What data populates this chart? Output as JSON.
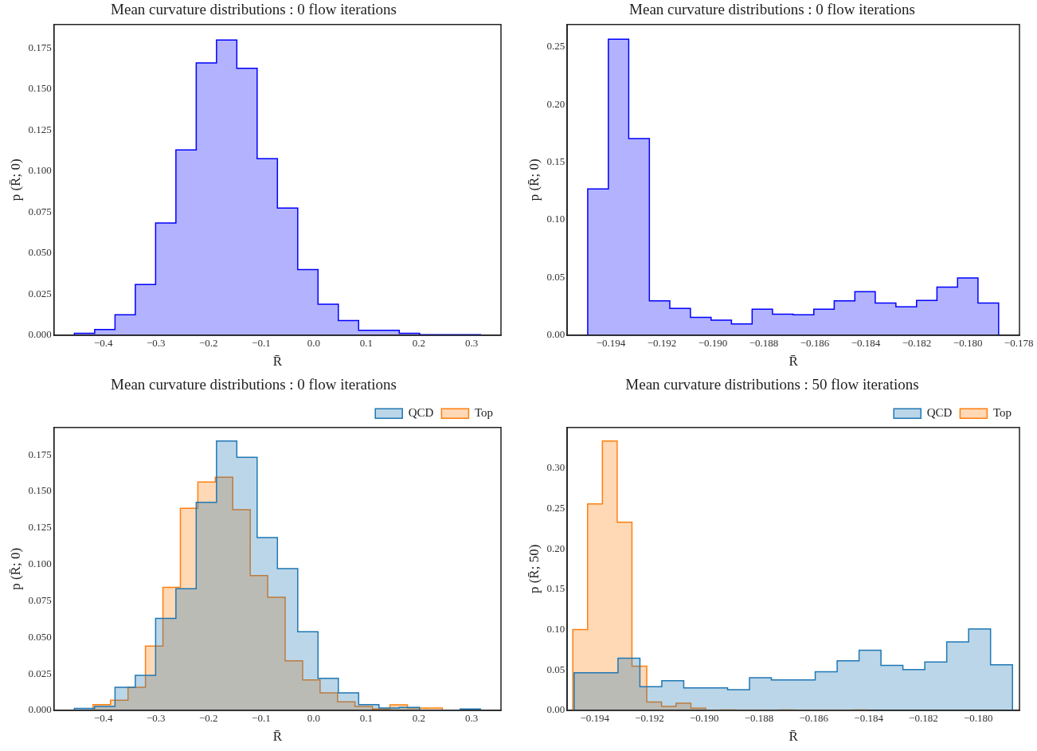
{
  "chart_data": [
    {
      "type": "histogram",
      "title": "Mean curvature distributions : 0 flow iterations",
      "xlabel": "R̄",
      "ylabel": "p (R̄; 0)",
      "color": "#0000ff",
      "bins": [
        -0.455,
        -0.4164,
        -0.3778,
        -0.3392,
        -0.3006,
        -0.262,
        -0.2234,
        -0.1848,
        -0.1462,
        -0.1076,
        -0.069,
        -0.0304,
        0.0082,
        0.0468,
        0.0854,
        0.124,
        0.1626,
        0.2012,
        0.2398,
        0.2784,
        0.317
      ],
      "values": [
        0.0012,
        0.0035,
        0.0125,
        0.031,
        0.0684,
        0.113,
        0.166,
        0.18,
        0.1627,
        0.1076,
        0.0776,
        0.04,
        0.0189,
        0.009,
        0.003,
        0.003,
        0.0012,
        0.0004,
        0.0004,
        0.0004
      ],
      "xlim": [
        -0.494,
        0.356
      ],
      "ylim": [
        0,
        0.1894
      ],
      "xticks": [
        {
          "value": -0.4,
          "label": "−0.4"
        },
        {
          "value": -0.3,
          "label": "−0.3"
        },
        {
          "value": -0.2,
          "label": "−0.2"
        },
        {
          "value": -0.1,
          "label": "−0.1"
        },
        {
          "value": 0,
          "label": "0.0"
        },
        0.1,
        0.2,
        0.3
      ],
      "yticks": [
        {
          "value": 0,
          "label": "0.000"
        },
        {
          "value": 0.025,
          "label": "0.025"
        },
        {
          "value": 0.05,
          "label": "0.050"
        },
        {
          "value": 0.075,
          "label": "0.075"
        },
        {
          "value": 0.1,
          "label": "0.100"
        },
        {
          "value": 0.125,
          "label": "0.125"
        },
        {
          "value": 0.15,
          "label": "0.150"
        },
        {
          "value": 0.175,
          "label": "0.175"
        }
      ]
    },
    {
      "type": "histogram",
      "title": "Mean curvature distributions : 0 flow iterations",
      "xlabel": "R̄",
      "ylabel": "p (R̄; 0)",
      "color": "#0000ff",
      "bins": [
        -0.19491,
        -0.1941,
        -0.1933,
        -0.19249,
        -0.19169,
        -0.19088,
        -0.19007,
        -0.18927,
        -0.18846,
        -0.18766,
        -0.18685,
        -0.18604,
        -0.18524,
        -0.18443,
        -0.18363,
        -0.18282,
        -0.18201,
        -0.18121,
        -0.1804,
        -0.1796,
        -0.17879
      ],
      "values": [
        0.1268,
        0.2564,
        0.1704,
        0.0299,
        0.0232,
        0.0155,
        0.0131,
        0.0098,
        0.0226,
        0.0183,
        0.0177,
        0.0226,
        0.0299,
        0.0378,
        0.028,
        0.0247,
        0.0302,
        0.0418,
        0.0497,
        0.028
      ],
      "xlim": [
        -0.195714,
        -0.177972
      ],
      "ylim": [
        0,
        0.2692
      ],
      "xticks": [
        {
          "value": -0.194,
          "label": "−0.194"
        },
        {
          "value": -0.192,
          "label": "−0.192"
        },
        {
          "value": -0.19,
          "label": "−0.190"
        },
        {
          "value": -0.188,
          "label": "−0.188"
        },
        {
          "value": -0.186,
          "label": "−0.186"
        },
        {
          "value": -0.184,
          "label": "−0.184"
        },
        {
          "value": -0.182,
          "label": "−0.182"
        },
        {
          "value": -0.18,
          "label": "−0.180"
        },
        {
          "value": -0.178,
          "label": "−0.178"
        }
      ],
      "yticks": [
        {
          "value": 0,
          "label": "0.00"
        },
        0.05,
        {
          "value": 0.1,
          "label": "0.10"
        },
        0.15,
        {
          "value": 0.2,
          "label": "0.20"
        },
        0.25
      ]
    },
    {
      "type": "histogram",
      "title": "Mean curvature distributions : 0 flow iterations",
      "xlabel": "R̄",
      "ylabel": "p (R̄; 0)",
      "legend": "top right",
      "bins": [
        -0.455,
        -0.4164,
        -0.3778,
        -0.3392,
        -0.3006,
        -0.262,
        -0.2234,
        -0.1848,
        -0.1462,
        -0.1076,
        -0.069,
        -0.0304,
        0.0082,
        0.0468,
        0.0854,
        0.124,
        0.1626,
        0.2012,
        0.2398,
        0.2784,
        0.317
      ],
      "series": [
        {
          "name": "QCD",
          "color": "#1f77b4",
          "values": [
            0.0013,
            0.0027,
            0.0158,
            0.024,
            0.063,
            0.0834,
            0.1426,
            0.1845,
            0.1733,
            0.1184,
            0.0971,
            0.0539,
            0.0219,
            0.012,
            0.004,
            0.0017,
            0.002,
            0,
            0,
            0.001
          ]
        },
        {
          "name": "Top",
          "color": "#ff7f0e",
          "bins": [
            -0.4195,
            -0.3863,
            -0.3531,
            -0.3199,
            -0.2867,
            -0.2535,
            -0.2203,
            -0.1871,
            -0.1539,
            -0.1207,
            -0.0875,
            -0.0543,
            -0.0211,
            0.0121,
            0.0453,
            0.0785,
            0.1117,
            0.1449,
            0.1781,
            0.2113,
            0.2445
          ],
          "values": [
            0.004,
            0.007,
            0.0158,
            0.044,
            0.0843,
            0.1384,
            0.1565,
            0.1597,
            0.1375,
            0.0923,
            0.0775,
            0.0339,
            0.0209,
            0.012,
            0.0059,
            0.0027,
            0.001,
            0.0038,
            0.0017,
            0.0017
          ]
        }
      ],
      "xlim": [
        -0.494,
        0.356
      ],
      "ylim": [
        0,
        0.1938
      ],
      "xticks": [
        {
          "value": -0.4,
          "label": "−0.4"
        },
        {
          "value": -0.3,
          "label": "−0.3"
        },
        {
          "value": -0.2,
          "label": "−0.2"
        },
        {
          "value": -0.1,
          "label": "−0.1"
        },
        {
          "value": 0,
          "label": "0.0"
        },
        0.1,
        0.2,
        0.3
      ],
      "yticks": [
        {
          "value": 0,
          "label": "0.000"
        },
        {
          "value": 0.025,
          "label": "0.025"
        },
        {
          "value": 0.05,
          "label": "0.050"
        },
        {
          "value": 0.075,
          "label": "0.075"
        },
        {
          "value": 0.1,
          "label": "0.100"
        },
        {
          "value": 0.125,
          "label": "0.125"
        },
        {
          "value": 0.15,
          "label": "0.150"
        },
        {
          "value": 0.175,
          "label": "0.175"
        }
      ]
    },
    {
      "type": "histogram",
      "title": "Mean curvature distributions : 50 flow iterations",
      "xlabel": "R̄",
      "ylabel": "p (R̄; 50)",
      "legend": "top right",
      "bins": [
        -0.19475,
        -0.19395,
        -0.19315,
        -0.19235,
        -0.19155,
        -0.19075,
        -0.18995,
        -0.18915,
        -0.18835,
        -0.18755,
        -0.18675,
        -0.18595,
        -0.18515,
        -0.18435,
        -0.18355,
        -0.18275,
        -0.18195,
        -0.18115,
        -0.18035,
        -0.17955,
        -0.17875
      ],
      "series": [
        {
          "name": "QCD",
          "color": "#1f77b4",
          "values": [
            0.0466,
            0.0466,
            0.0646,
            0.0294,
            0.0367,
            0.0279,
            0.0279,
            0.0256,
            0.0405,
            0.0378,
            0.0378,
            0.0478,
            0.0615,
            0.0745,
            0.0558,
            0.0505,
            0.06,
            0.0849,
            0.1009,
            0.0566
          ]
        },
        {
          "name": "Top",
          "color": "#ff7f0e",
          "bins": [
            -0.1948,
            -0.19426,
            -0.19372,
            -0.19318,
            -0.19264,
            -0.1921,
            -0.19156,
            -0.19103,
            -0.19049,
            -0.18995,
            -0.18941,
            -0.18887,
            -0.18833,
            -0.18779,
            -0.18725,
            -0.18671,
            -0.18617,
            -0.18563,
            -0.18509,
            -0.18455,
            -0.18401
          ],
          "values": [
            0.1002,
            0.2558,
            0.3338,
            0.2332,
            0.0547,
            0.0103,
            0.005,
            0.0088,
            0.0027,
            0,
            0.0005,
            0,
            0,
            0,
            0.0005,
            0,
            0,
            0,
            0,
            0.0005
          ]
        }
      ],
      "xlim": [
        -0.195004,
        -0.178494
      ],
      "ylim": [
        0,
        0.3505
      ],
      "xticks": [
        {
          "value": -0.194,
          "label": "−0.194"
        },
        {
          "value": -0.192,
          "label": "−0.192"
        },
        {
          "value": -0.19,
          "label": "−0.190"
        },
        {
          "value": -0.188,
          "label": "−0.188"
        },
        {
          "value": -0.186,
          "label": "−0.186"
        },
        {
          "value": -0.184,
          "label": "−0.184"
        },
        {
          "value": -0.182,
          "label": "−0.182"
        },
        {
          "value": -0.18,
          "label": "−0.180"
        }
      ],
      "yticks": [
        {
          "value": 0,
          "label": "0.00"
        },
        0.05,
        {
          "value": 0.1,
          "label": "0.10"
        },
        0.15,
        {
          "value": 0.2,
          "label": "0.20"
        },
        0.25,
        {
          "value": 0.3,
          "label": "0.30"
        }
      ]
    }
  ]
}
